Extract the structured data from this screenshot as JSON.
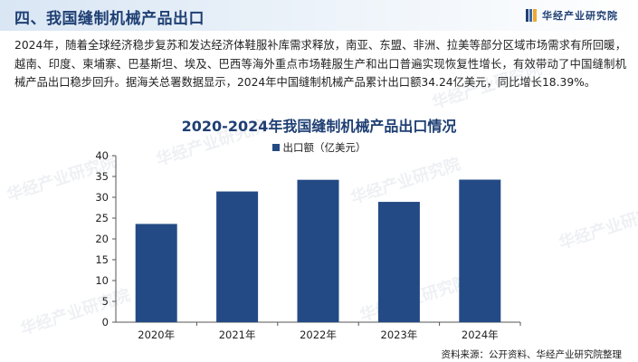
{
  "header": {
    "title": "四、我国缝制机械产品出口",
    "logo_text": "华经产业研究院"
  },
  "paragraph": "2024年，随着全球经济稳步复苏和发达经济体鞋服补库需求释放，南亚、东盟、非洲、拉美等部分区域市场需求有所回暖，越南、印度、柬埔寨、巴基斯坦、埃及、巴西等海外重点市场鞋服生产和出口普遍实现恢复性增长，有效带动了中国缝制机械产品出口稳步回升。据海关总署数据显示，2024年中国缝制机械产品累计出口额34.24亿美元，同比增长18.39%。",
  "watermark": "华经产业研究院",
  "source": "资料来源：公开资料、华经产业研究院整理",
  "colors": {
    "bar": "#234a84",
    "title": "#1f3f73",
    "accent": "#f0a92e"
  },
  "chart_data": {
    "type": "bar",
    "title": "2020-2024年我国缝制机械产品出口情况",
    "categories": [
      "2020年",
      "2021年",
      "2022年",
      "2023年",
      "2024年"
    ],
    "series": [
      {
        "name": "出口额（亿美元）",
        "values": [
          23.6,
          31.4,
          34.2,
          28.9,
          34.24
        ]
      }
    ],
    "ylim": [
      0,
      40
    ],
    "yticks": [
      0,
      5,
      10,
      15,
      20,
      25,
      30,
      35,
      40
    ],
    "grid": false,
    "legend_position": "top"
  }
}
